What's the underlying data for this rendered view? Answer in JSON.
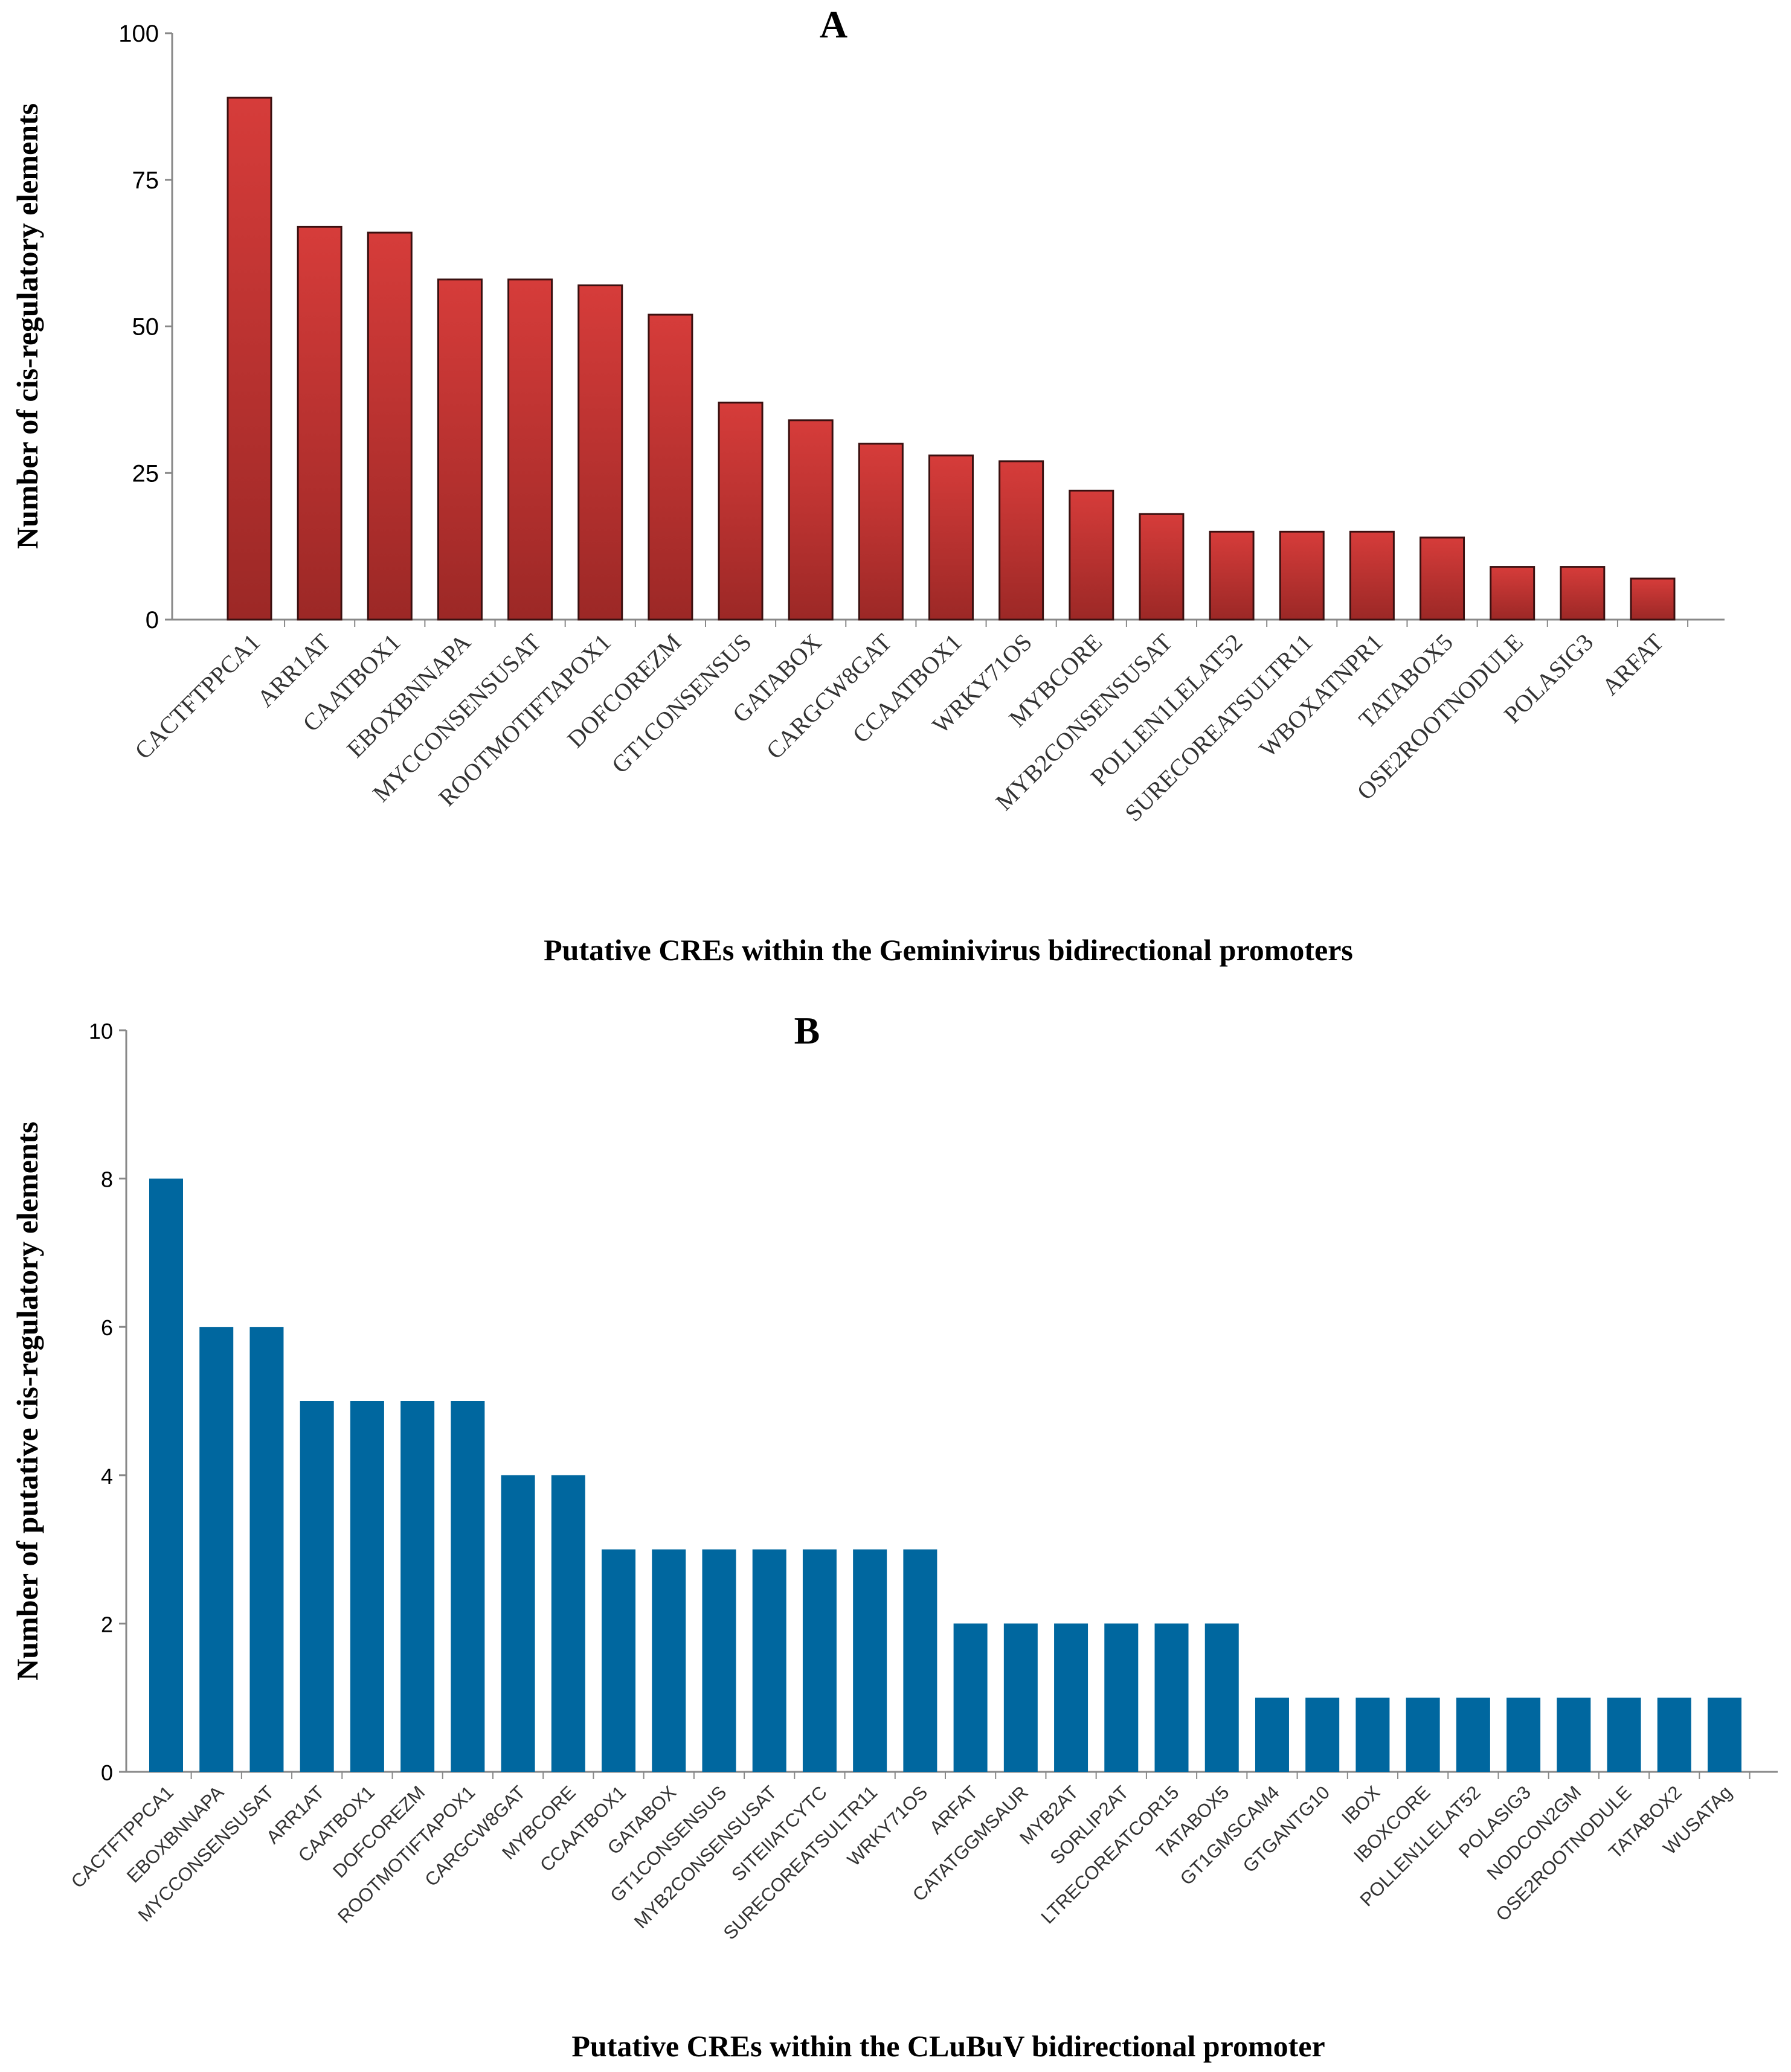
{
  "chart_data": [
    {
      "type": "bar",
      "title": "A",
      "xlabel": "Putative CREs within the Geminivirus bidirectional promoters",
      "ylabel": "Number of cis-regulatory  elements",
      "ylim": [
        0,
        100
      ],
      "yticks": [
        0,
        25,
        50,
        75,
        100
      ],
      "grid": false,
      "color": "#c0302f",
      "categories": [
        "CACTFTPPCA1",
        "ARR1AT",
        "CAATBOX1",
        "EBOXBNNAPA",
        "MYCCONSENSUSAT",
        "ROOTMOTIFTAPOX1",
        "DOFCOREZM",
        "GT1CONSENSUS",
        "GATABOX",
        "CARGCW8GAT",
        "CCAATBOX1",
        "WRKY71OS",
        "MYBCORE",
        "MYB2CONSENSUSAT",
        "POLLEN1LELAT52",
        "SURECOREATSULTR11",
        "WBOXATNPR1",
        "TATABOX5",
        "OSE2ROOTNODULE",
        "POLASIG3",
        "ARFAT"
      ],
      "values": [
        89,
        67,
        66,
        58,
        58,
        57,
        52,
        37,
        34,
        30,
        28,
        27,
        22,
        18,
        15,
        15,
        15,
        14,
        9,
        9,
        7
      ]
    },
    {
      "type": "bar",
      "title": "B",
      "xlabel": "Putative  CREs within the CLuBuV bidirectional promoter",
      "ylabel": "Number of putative cis-regulatory  elements",
      "ylim": [
        0,
        10
      ],
      "yticks": [
        0,
        2,
        4,
        6,
        8,
        10
      ],
      "grid": false,
      "color": "#00679f",
      "categories": [
        "CACTFTPPCA1",
        "EBOXBNNAPA",
        "MYCCONSENSUSAT",
        "ARR1AT",
        "CAATBOX1",
        "DOFCOREZM",
        "ROOTMOTIFTAPOX1",
        "CARGCW8GAT",
        "MYBCORE",
        "CCAATBOX1",
        "GATABOX",
        "GT1CONSENSUS",
        "MYB2CONSENSUSAT",
        "SITEIIATCYTC",
        "SURECOREATSULTR11",
        "WRKY71OS",
        "ARFAT",
        "CATATGGMSAUR",
        "MYB2AT",
        "SORLIP2AT",
        "LTRECOREATCOR15",
        "TATABOX5",
        "GT1GMSCAM4",
        "GTGANTG10",
        "IBOX",
        "IBOXCORE",
        "POLLEN1LELAT52",
        "POLASIG3",
        "NODCON2GM",
        "OSE2ROOTNODULE",
        "TATABOX2",
        "WUSATAg"
      ],
      "values": [
        8,
        6,
        6,
        5,
        5,
        5,
        5,
        4,
        4,
        3,
        3,
        3,
        3,
        3,
        3,
        3,
        2,
        2,
        2,
        2,
        2,
        2,
        1,
        1,
        1,
        1,
        1,
        1,
        1,
        1,
        1,
        1
      ]
    }
  ]
}
